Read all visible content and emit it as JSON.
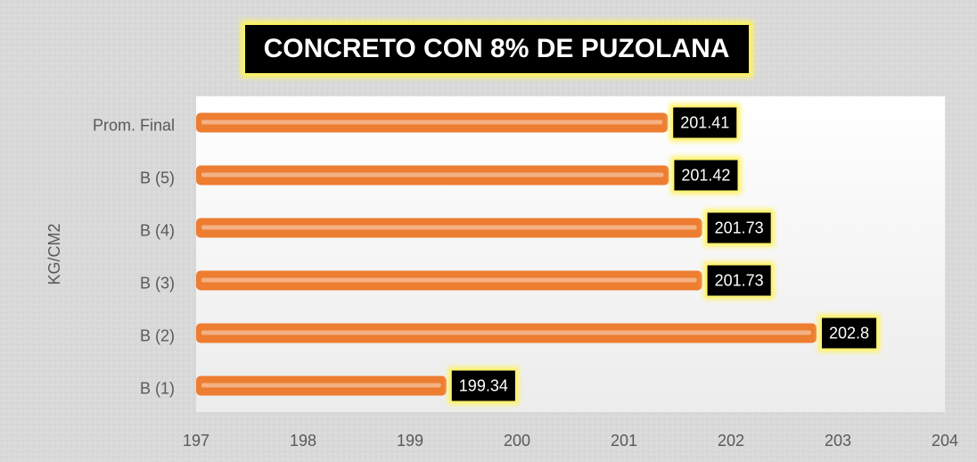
{
  "chart_data": {
    "type": "bar",
    "orientation": "horizontal",
    "title": "CONCRETO CON 8% DE PUZOLANA",
    "y_label": "KG/CM2",
    "categories": [
      "B (1)",
      "B (2)",
      "B (3)",
      "B (4)",
      "B (5)",
      "Prom. Final"
    ],
    "values": [
      199.34,
      202.8,
      201.73,
      201.73,
      201.42,
      201.41
    ],
    "color": "#ed7d31",
    "xlim": [
      197,
      204
    ],
    "xticks": [
      197,
      198,
      199,
      200,
      201,
      202,
      203,
      204
    ]
  }
}
